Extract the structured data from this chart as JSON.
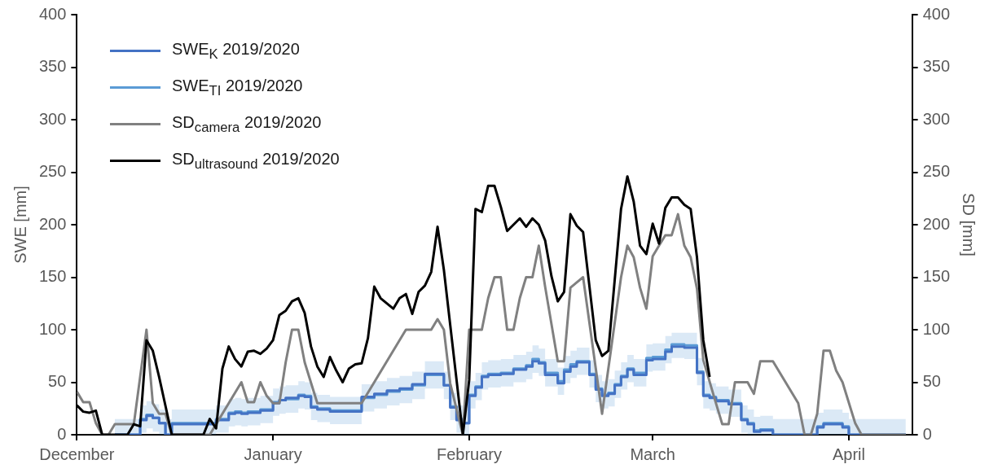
{
  "chart_data": {
    "type": "line",
    "ylabel": "SWE [mm]",
    "y2label": "SD [mm]",
    "xlim": [
      "2019-12-01",
      "2020-04-11"
    ],
    "xticks": [
      {
        "value": "2019-12-01",
        "label": "December"
      },
      {
        "value": "2020-01-01",
        "label": "January"
      },
      {
        "value": "2020-02-01",
        "label": "February"
      },
      {
        "value": "2020-03-01",
        "label": "March"
      },
      {
        "value": "2020-04-01",
        "label": "April"
      }
    ],
    "ylim": [
      0,
      400
    ],
    "yticks": [
      0,
      50,
      100,
      150,
      200,
      250,
      300,
      350,
      400
    ],
    "y2lim": [
      0,
      400
    ],
    "y2ticks": [
      0,
      50,
      100,
      150,
      200,
      250,
      300,
      350,
      400
    ],
    "grid": false,
    "legend": "top left",
    "marker": "none",
    "line_style": "solid",
    "series": [
      {
        "name": "SWE$_{K}$ 2019/2020",
        "type": "step",
        "color": "#4472c4",
        "x": [
          "2019-12-07",
          "2019-12-11",
          "2019-12-12",
          "2019-12-13",
          "2019-12-14",
          "2019-12-15",
          "2019-12-16",
          "2019-12-23",
          "2019-12-25",
          "2019-12-26",
          "2019-12-27",
          "2019-12-28",
          "2019-12-30",
          "2020-01-01",
          "2020-01-02",
          "2020-01-03",
          "2020-01-05",
          "2020-01-06",
          "2020-01-07",
          "2020-01-08",
          "2020-01-10",
          "2020-01-12",
          "2020-01-15",
          "2020-01-17",
          "2020-01-19",
          "2020-01-21",
          "2020-01-23",
          "2020-01-25",
          "2020-01-27",
          "2020-01-28",
          "2020-01-29",
          "2020-01-30",
          "2020-01-31",
          "2020-02-01",
          "2020-02-02",
          "2020-02-03",
          "2020-02-04",
          "2020-02-06",
          "2020-02-08",
          "2020-02-09",
          "2020-02-10",
          "2020-02-11",
          "2020-02-12",
          "2020-02-13",
          "2020-02-15",
          "2020-02-16",
          "2020-02-17",
          "2020-02-18",
          "2020-02-20",
          "2020-02-21",
          "2020-02-22",
          "2020-02-23",
          "2020-02-24",
          "2020-02-25",
          "2020-02-26",
          "2020-02-27",
          "2020-02-29",
          "2020-03-01",
          "2020-03-03",
          "2020-03-04",
          "2020-03-06",
          "2020-03-08",
          "2020-03-09",
          "2020-03-10",
          "2020-03-11",
          "2020-03-13",
          "2020-03-15",
          "2020-03-16",
          "2020-03-17",
          "2020-03-18",
          "2020-03-20",
          "2020-03-21",
          "2020-03-27",
          "2020-03-28",
          "2020-03-29",
          "2020-03-31",
          "2020-04-01",
          "2020-04-03",
          "2020-04-10"
        ],
        "values": [
          0,
          0,
          14,
          18,
          16,
          11,
          0,
          10,
          14,
          20,
          21,
          20,
          21,
          23,
          30,
          33,
          35,
          37,
          36,
          26,
          24,
          22,
          22,
          36,
          39,
          42,
          44,
          48,
          58,
          58,
          47,
          26,
          14,
          11,
          37,
          45,
          55,
          57,
          58,
          62,
          62,
          65,
          70,
          68,
          57,
          49,
          60,
          65,
          69,
          57,
          43,
          37,
          39,
          47,
          55,
          62,
          57,
          71,
          72,
          79,
          84,
          83,
          59,
          37,
          35,
          32,
          29,
          14,
          10,
          3,
          4,
          0,
          0,
          7,
          10,
          10,
          7,
          0,
          0
        ]
      },
      {
        "name": "SWE$_{TI}$ 2019/2020",
        "type": "step",
        "color": "#5b9bd5",
        "x": [
          "2019-12-07",
          "2019-12-11",
          "2019-12-12",
          "2019-12-13",
          "2019-12-14",
          "2019-12-15",
          "2019-12-16",
          "2019-12-23",
          "2019-12-25",
          "2019-12-26",
          "2019-12-27",
          "2019-12-28",
          "2019-12-30",
          "2020-01-01",
          "2020-01-02",
          "2020-01-03",
          "2020-01-05",
          "2020-01-06",
          "2020-01-07",
          "2020-01-08",
          "2020-01-10",
          "2020-01-12",
          "2020-01-15",
          "2020-01-17",
          "2020-01-19",
          "2020-01-21",
          "2020-01-23",
          "2020-01-25",
          "2020-01-27",
          "2020-01-28",
          "2020-01-29",
          "2020-01-30",
          "2020-01-31",
          "2020-02-01",
          "2020-02-02",
          "2020-02-03",
          "2020-02-04",
          "2020-02-06",
          "2020-02-08",
          "2020-02-09",
          "2020-02-10",
          "2020-02-11",
          "2020-02-12",
          "2020-02-13",
          "2020-02-15",
          "2020-02-16",
          "2020-02-17",
          "2020-02-18",
          "2020-02-20",
          "2020-02-21",
          "2020-02-22",
          "2020-02-23",
          "2020-02-24",
          "2020-02-25",
          "2020-02-26",
          "2020-02-27",
          "2020-02-29",
          "2020-03-01",
          "2020-03-03",
          "2020-03-04",
          "2020-03-06",
          "2020-03-08",
          "2020-03-09",
          "2020-03-10",
          "2020-03-11",
          "2020-03-13",
          "2020-03-15",
          "2020-03-16",
          "2020-03-17",
          "2020-03-18",
          "2020-03-20",
          "2020-03-21",
          "2020-03-27",
          "2020-03-28",
          "2020-03-29",
          "2020-03-31",
          "2020-04-01",
          "2020-04-03",
          "2020-04-10"
        ],
        "values": [
          0,
          0,
          15,
          19,
          16,
          11,
          0,
          11,
          15,
          21,
          22,
          21,
          22,
          24,
          31,
          33,
          34,
          38,
          37,
          27,
          25,
          23,
          23,
          35,
          38,
          41,
          43,
          47,
          57,
          57,
          47,
          27,
          15,
          11,
          38,
          46,
          56,
          58,
          59,
          63,
          63,
          66,
          72,
          69,
          59,
          51,
          62,
          67,
          70,
          58,
          44,
          38,
          40,
          48,
          56,
          63,
          59,
          73,
          74,
          81,
          86,
          85,
          60,
          38,
          36,
          33,
          30,
          15,
          11,
          4,
          5,
          0,
          0,
          8,
          11,
          11,
          8,
          0,
          0
        ],
        "lower": [
          0,
          0,
          2,
          6,
          3,
          0,
          0,
          0,
          2,
          8,
          9,
          8,
          9,
          11,
          18,
          20,
          21,
          25,
          24,
          14,
          12,
          10,
          10,
          22,
          25,
          28,
          30,
          34,
          44,
          44,
          34,
          14,
          2,
          0,
          25,
          33,
          43,
          45,
          46,
          50,
          50,
          53,
          59,
          56,
          46,
          38,
          49,
          54,
          57,
          45,
          31,
          25,
          27,
          35,
          43,
          50,
          46,
          60,
          61,
          68,
          73,
          72,
          47,
          25,
          23,
          20,
          17,
          2,
          0,
          0,
          0,
          0,
          0,
          0,
          0,
          0,
          0,
          0,
          0
        ],
        "upper": [
          15,
          15,
          28,
          32,
          29,
          24,
          15,
          24,
          28,
          34,
          35,
          34,
          35,
          37,
          44,
          46,
          47,
          51,
          50,
          40,
          38,
          36,
          36,
          48,
          51,
          54,
          56,
          60,
          70,
          70,
          60,
          40,
          28,
          24,
          51,
          59,
          69,
          71,
          72,
          76,
          76,
          79,
          85,
          82,
          72,
          64,
          75,
          80,
          83,
          71,
          57,
          51,
          53,
          61,
          69,
          76,
          72,
          86,
          87,
          94,
          97,
          97,
          73,
          51,
          49,
          46,
          43,
          28,
          24,
          17,
          18,
          15,
          15,
          21,
          24,
          24,
          21,
          15,
          15
        ]
      },
      {
        "name": "SD$_{camera}$ 2019/2020",
        "type": "line",
        "axis": "y2",
        "color": "#808080",
        "x": [
          "2019-12-01",
          "2019-12-02",
          "2019-12-03",
          "2019-12-04",
          "2019-12-05",
          "2019-12-06",
          "2019-12-07",
          "2019-12-10",
          "2019-12-12",
          "2019-12-13",
          "2019-12-14",
          "2019-12-15",
          "2019-12-16",
          "2019-12-22",
          "2019-12-27",
          "2019-12-28",
          "2019-12-29",
          "2019-12-30",
          "2019-12-31",
          "2020-01-01",
          "2020-01-02",
          "2020-01-03",
          "2020-01-04",
          "2020-01-05",
          "2020-01-06",
          "2020-01-08",
          "2020-01-15",
          "2020-01-22",
          "2020-01-26",
          "2020-01-27",
          "2020-01-28",
          "2020-01-29",
          "2020-01-31",
          "2020-02-01",
          "2020-02-03",
          "2020-02-04",
          "2020-02-05",
          "2020-02-06",
          "2020-02-07",
          "2020-02-08",
          "2020-02-09",
          "2020-02-10",
          "2020-02-11",
          "2020-02-12",
          "2020-02-13",
          "2020-02-15",
          "2020-02-16",
          "2020-02-17",
          "2020-02-18",
          "2020-02-19",
          "2020-02-22",
          "2020-02-25",
          "2020-02-26",
          "2020-02-27",
          "2020-02-28",
          "2020-02-29",
          "2020-03-01",
          "2020-03-02",
          "2020-03-03",
          "2020-03-04",
          "2020-03-05",
          "2020-03-06",
          "2020-03-07",
          "2020-03-08",
          "2020-03-09",
          "2020-03-11",
          "2020-03-12",
          "2020-03-13",
          "2020-03-14",
          "2020-03-16",
          "2020-03-17",
          "2020-03-18",
          "2020-03-20",
          "2020-03-24",
          "2020-03-25",
          "2020-03-26",
          "2020-03-27",
          "2020-03-28",
          "2020-03-29",
          "2020-03-30",
          "2020-03-31",
          "2020-04-02",
          "2020-04-03",
          "2020-04-10"
        ],
        "values": [
          41,
          31,
          31,
          11,
          0,
          0,
          10,
          10,
          100,
          30,
          20,
          20,
          0,
          0,
          50,
          31,
          31,
          50,
          37,
          30,
          30,
          69,
          100,
          100,
          69,
          30,
          30,
          100,
          100,
          110,
          100,
          49,
          0,
          100,
          100,
          130,
          150,
          150,
          100,
          100,
          130,
          150,
          150,
          180,
          141,
          70,
          70,
          140,
          145,
          150,
          20,
          150,
          180,
          169,
          140,
          120,
          170,
          180,
          190,
          190,
          210,
          180,
          169,
          139,
          71,
          30,
          10,
          10,
          50,
          50,
          39,
          70,
          70,
          30,
          0,
          0,
          20,
          80,
          80,
          61,
          50,
          11,
          0,
          0
        ]
      },
      {
        "name": "SD$_{ultrasound}$ 2019/2020",
        "type": "line",
        "axis": "y2",
        "color": "#000000",
        "x": [
          "2019-12-01",
          "2019-12-02",
          "2019-12-03",
          "2019-12-04",
          "2019-12-05",
          "2019-12-09",
          "2019-12-10",
          "2019-12-11",
          "2019-12-12",
          "2019-12-13",
          "2019-12-14",
          "2019-12-16",
          "2019-12-21",
          "2019-12-22",
          "2019-12-23",
          "2019-12-24",
          "2019-12-25",
          "2019-12-26",
          "2019-12-27",
          "2019-12-28",
          "2019-12-29",
          "2019-12-30",
          "2019-12-31",
          "2020-01-01",
          "2020-01-02",
          "2020-01-03",
          "2020-01-04",
          "2020-01-05",
          "2020-01-06",
          "2020-01-07",
          "2020-01-08",
          "2020-01-09",
          "2020-01-10",
          "2020-01-11",
          "2020-01-12",
          "2020-01-13",
          "2020-01-14",
          "2020-01-15",
          "2020-01-16",
          "2020-01-17",
          "2020-01-18",
          "2020-01-20",
          "2020-01-21",
          "2020-01-22",
          "2020-01-23",
          "2020-01-24",
          "2020-01-25",
          "2020-01-26",
          "2020-01-27",
          "2020-01-28",
          "2020-01-31",
          "2020-02-01",
          "2020-02-02",
          "2020-02-03",
          "2020-02-04",
          "2020-02-05",
          "2020-02-06",
          "2020-02-07",
          "2020-02-08",
          "2020-02-09",
          "2020-02-10",
          "2020-02-11",
          "2020-02-12",
          "2020-02-13",
          "2020-02-14",
          "2020-02-15",
          "2020-02-16",
          "2020-02-17",
          "2020-02-18",
          "2020-02-19",
          "2020-02-21",
          "2020-02-22",
          "2020-02-23",
          "2020-02-25",
          "2020-02-26",
          "2020-02-27",
          "2020-02-28",
          "2020-02-29",
          "2020-03-01",
          "2020-03-02",
          "2020-03-03",
          "2020-03-04",
          "2020-03-05",
          "2020-03-06",
          "2020-03-07",
          "2020-03-08",
          "2020-03-09",
          "2020-03-10"
        ],
        "values": [
          28,
          22,
          21,
          23,
          0,
          0,
          10,
          8,
          90,
          80,
          55,
          0,
          0,
          15,
          6,
          63,
          84,
          72,
          65,
          79,
          80,
          77,
          82,
          90,
          114,
          118,
          127,
          130,
          116,
          84,
          65,
          55,
          74,
          61,
          50,
          63,
          67,
          68,
          92,
          141,
          130,
          120,
          130,
          134,
          115,
          136,
          142,
          155,
          198,
          157,
          0,
          52,
          215,
          212,
          237,
          237,
          217,
          194,
          200,
          206,
          198,
          206,
          200,
          185,
          151,
          127,
          136,
          210,
          199,
          193,
          90,
          75,
          80,
          215,
          246,
          222,
          180,
          172,
          201,
          182,
          216,
          226,
          226,
          219,
          215,
          169,
          90,
          55
        ]
      }
    ]
  }
}
